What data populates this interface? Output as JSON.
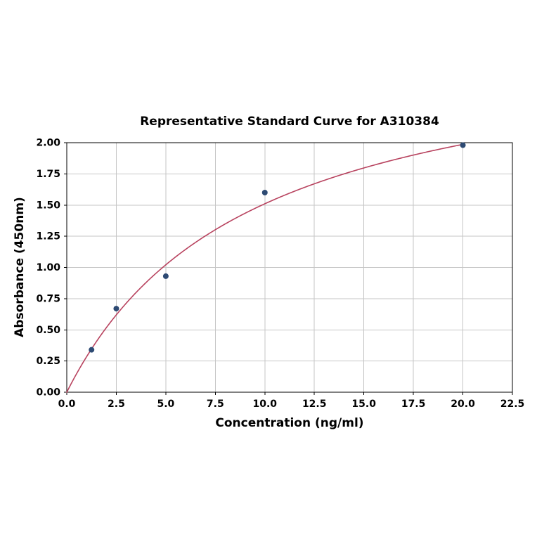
{
  "page": {
    "background_color": "#ffffff"
  },
  "chart_data": {
    "type": "scatter",
    "title": "Representative Standard Curve for A310384",
    "xlabel": "Concentration (ng/ml)",
    "ylabel": "Absorbance (450nm)",
    "xlim": [
      0,
      22.5
    ],
    "ylim": [
      0,
      2.0
    ],
    "grid": true,
    "legend": "none",
    "x_tick_values": [
      0.0,
      2.5,
      5.0,
      7.5,
      10.0,
      12.5,
      15.0,
      17.5,
      20.0,
      22.5
    ],
    "x_tick_labels": [
      "0.0",
      "2.5",
      "5.0",
      "7.5",
      "10.0",
      "12.5",
      "15.0",
      "17.5",
      "20.0",
      "22.5"
    ],
    "y_tick_values": [
      0.0,
      0.25,
      0.5,
      0.75,
      1.0,
      1.25,
      1.5,
      1.75,
      2.0
    ],
    "y_tick_labels": [
      "0.00",
      "0.25",
      "0.50",
      "0.75",
      "1.00",
      "1.25",
      "1.50",
      "1.75",
      "2.00"
    ],
    "points": {
      "name": "standards",
      "x": [
        1.25,
        2.5,
        5,
        10,
        20
      ],
      "y": [
        0.34,
        0.67,
        0.93,
        1.6,
        1.98
      ],
      "color": "#2d4a73",
      "radius": 4
    },
    "trendline": {
      "model": "saturation: y = vmax * x / (k + x)",
      "vmax": 2.9,
      "k": 9.2,
      "x_start": 0,
      "x_end": 20,
      "color": "#b8435f",
      "width": 1.6
    },
    "colors": {
      "grid": "#c6c6c6",
      "axis": "#000000",
      "text": "#000000",
      "plot_background": "#ffffff"
    }
  }
}
